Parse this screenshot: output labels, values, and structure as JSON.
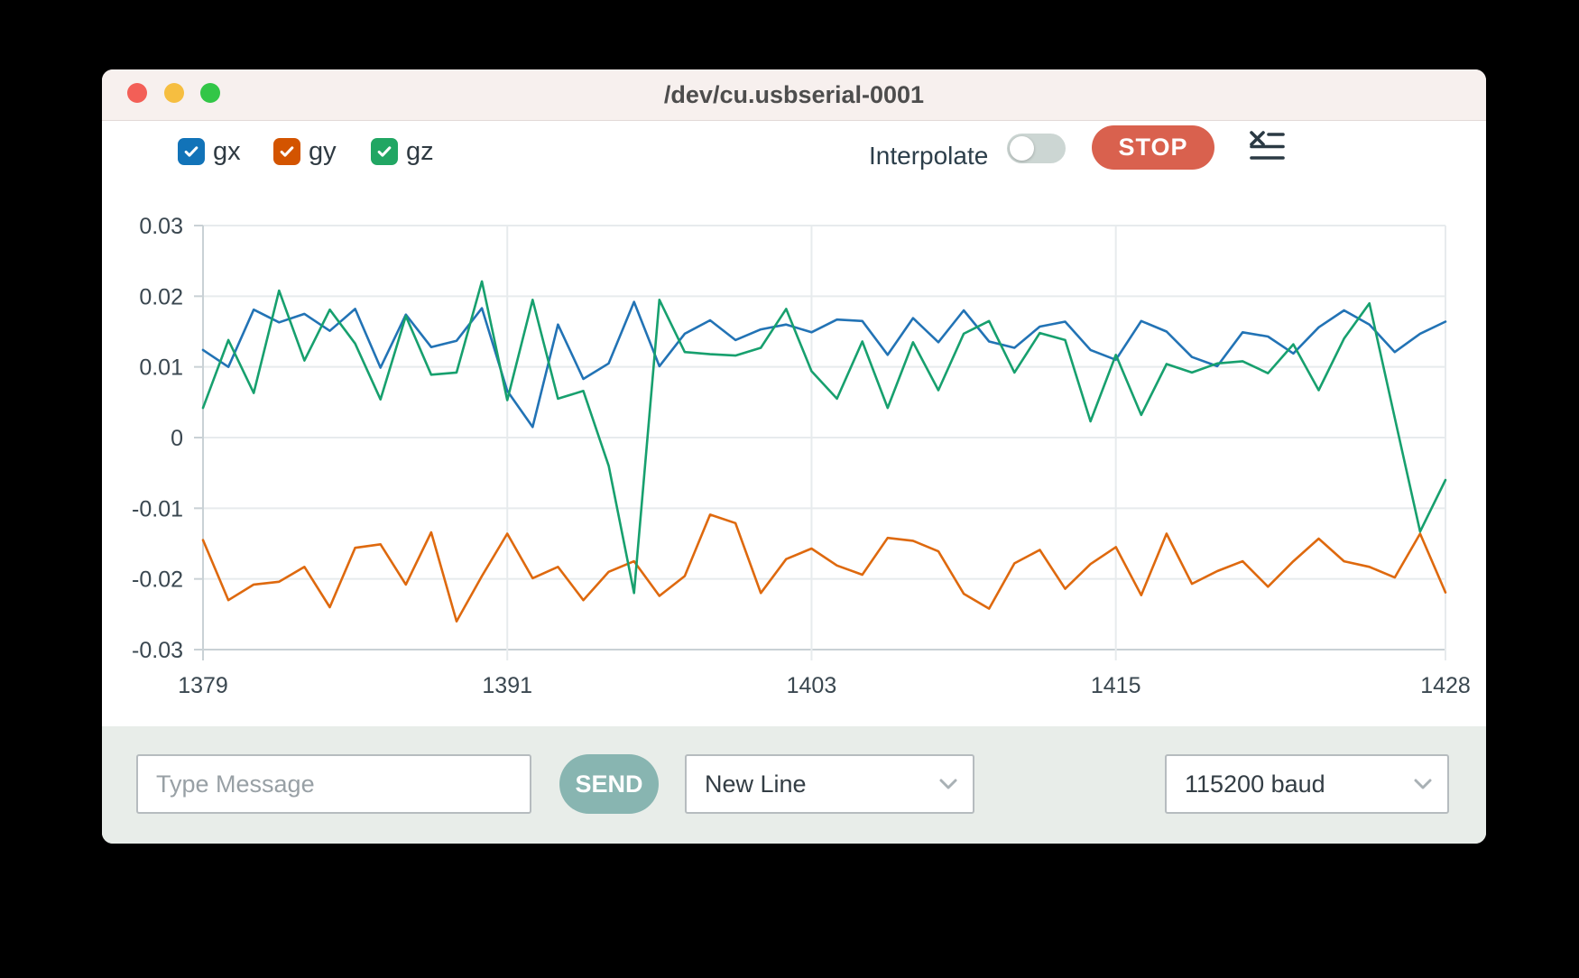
{
  "window": {
    "title": "/dev/cu.usbserial-0001"
  },
  "traffic_lights": {
    "close": "#f35f57",
    "minimize": "#f6be40",
    "zoom": "#32c647"
  },
  "legend": {
    "items": [
      {
        "label": "gx",
        "color": "#1273b8",
        "checked": true
      },
      {
        "label": "gy",
        "color": "#d35400",
        "checked": true
      },
      {
        "label": "gz",
        "color": "#21a663",
        "checked": true
      }
    ]
  },
  "controls": {
    "interpolate_label": "Interpolate",
    "interpolate_on": false,
    "stop_label": "STOP",
    "clear_icon": "clear-list-icon"
  },
  "chart_data": {
    "type": "line",
    "title": "",
    "xlabel": "",
    "ylabel": "",
    "x_range": [
      1379,
      1428
    ],
    "ylim": [
      -0.03,
      0.03
    ],
    "x_ticks": [
      1379,
      1391,
      1403,
      1415,
      1428
    ],
    "y_ticks": [
      0.03,
      0.02,
      0.01,
      0,
      -0.01,
      -0.02,
      -0.03
    ],
    "grid": true,
    "legend_position": "top-left-outside",
    "interpolation": "linear-straight",
    "x": [
      1379,
      1380,
      1381,
      1382,
      1383,
      1384,
      1385,
      1386,
      1387,
      1388,
      1389,
      1390,
      1391,
      1392,
      1393,
      1394,
      1395,
      1396,
      1397,
      1398,
      1399,
      1400,
      1401,
      1402,
      1403,
      1404,
      1405,
      1406,
      1407,
      1408,
      1409,
      1410,
      1411,
      1412,
      1413,
      1414,
      1415,
      1416,
      1417,
      1418,
      1419,
      1420,
      1421,
      1422,
      1423,
      1424,
      1425,
      1426,
      1427,
      1428
    ],
    "series": [
      {
        "name": "gx",
        "color": "#2273b5",
        "values": [
          0.0124,
          0.01,
          0.0181,
          0.0163,
          0.0175,
          0.0151,
          0.0182,
          0.0099,
          0.0174,
          0.0128,
          0.0137,
          0.0183,
          0.0066,
          0.0015,
          0.016,
          0.0083,
          0.0105,
          0.0192,
          0.0101,
          0.0147,
          0.0166,
          0.0138,
          0.0153,
          0.016,
          0.0149,
          0.0167,
          0.0165,
          0.0117,
          0.0169,
          0.0135,
          0.018,
          0.0136,
          0.0127,
          0.0157,
          0.0164,
          0.0124,
          0.011,
          0.0165,
          0.015,
          0.0114,
          0.0101,
          0.0149,
          0.0143,
          0.0119,
          0.0156,
          0.018,
          0.016,
          0.0121,
          0.0147,
          0.0164
        ]
      },
      {
        "name": "gy",
        "color": "#de690e",
        "values": [
          -0.0145,
          -0.023,
          -0.0208,
          -0.0204,
          -0.0183,
          -0.024,
          -0.0156,
          -0.0151,
          -0.0208,
          -0.0134,
          -0.026,
          -0.0196,
          -0.0136,
          -0.0199,
          -0.0183,
          -0.023,
          -0.019,
          -0.0175,
          -0.0224,
          -0.0196,
          -0.0109,
          -0.0121,
          -0.022,
          -0.0172,
          -0.0157,
          -0.0181,
          -0.0194,
          -0.0142,
          -0.0146,
          -0.0161,
          -0.0221,
          -0.0242,
          -0.0178,
          -0.0159,
          -0.0214,
          -0.0179,
          -0.0155,
          -0.0223,
          -0.0136,
          -0.0207,
          -0.0189,
          -0.0175,
          -0.0211,
          -0.0175,
          -0.0143,
          -0.0175,
          -0.0183,
          -0.0198,
          -0.0136,
          -0.0219
        ]
      },
      {
        "name": "gz",
        "color": "#17a06e",
        "values": [
          0.0042,
          0.0138,
          0.0063,
          0.0208,
          0.0109,
          0.0181,
          0.0133,
          0.0054,
          0.0172,
          0.0089,
          0.0092,
          0.0221,
          0.0053,
          0.0195,
          0.0055,
          0.0066,
          -0.004,
          -0.022,
          0.0195,
          0.0121,
          0.0118,
          0.0116,
          0.0127,
          0.0182,
          0.0094,
          0.0055,
          0.0136,
          0.0042,
          0.0135,
          0.0067,
          0.0147,
          0.0165,
          0.0092,
          0.0148,
          0.0138,
          0.0023,
          0.0117,
          0.0032,
          0.0104,
          0.0092,
          0.0105,
          0.0108,
          0.0091,
          0.0132,
          0.0067,
          0.014,
          0.019,
          0.0028,
          -0.0133,
          -0.006
        ]
      }
    ]
  },
  "bottom_bar": {
    "message_placeholder": "Type Message",
    "message_value": "",
    "send_label": "SEND",
    "line_ending_selected": "New Line",
    "baud_selected": "115200 baud"
  },
  "colors": {
    "titlebar_bg": "#f7f0ee",
    "window_bg": "#ffffff",
    "bottombar_bg": "#e8ede9",
    "stop_button": "#d9614e",
    "send_button": "#88b5b1",
    "toggle_track_off": "#ccd6d3",
    "grid_line": "#e7ebed",
    "axis_line": "#c9d1d5",
    "axis_text": "#3a4750"
  }
}
